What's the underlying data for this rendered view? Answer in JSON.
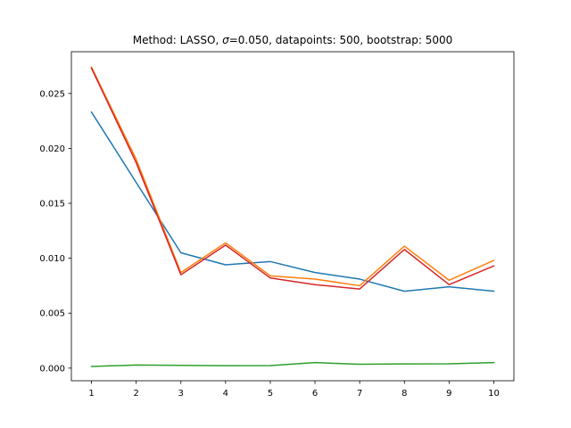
{
  "chart_data": {
    "type": "line",
    "title": "Method: LASSO, σ=0.050, datapoints: 500, bootstrap: 5000",
    "title_parts": {
      "prefix": "Method: LASSO, ",
      "sigma_symbol": "σ",
      "suffix": "=0.050, datapoints: 500, bootstrap: 5000"
    },
    "xlabel": "",
    "ylabel": "",
    "x": [
      1,
      2,
      3,
      4,
      5,
      6,
      7,
      8,
      9,
      10
    ],
    "xlim": [
      0.55,
      10.45
    ],
    "ylim": [
      -0.00115,
      0.0288
    ],
    "xticks": [
      "1",
      "2",
      "3",
      "4",
      "5",
      "6",
      "7",
      "8",
      "9",
      "10"
    ],
    "yticks": [
      {
        "value": 0.0,
        "label": "0.000"
      },
      {
        "value": 0.005,
        "label": "0.005"
      },
      {
        "value": 0.01,
        "label": "0.010"
      },
      {
        "value": 0.015,
        "label": "0.015"
      },
      {
        "value": 0.02,
        "label": "0.020"
      },
      {
        "value": 0.025,
        "label": "0.025"
      }
    ],
    "grid": false,
    "legend": false,
    "series": [
      {
        "color": "#1f77b4",
        "values": [
          0.0233,
          0.0169,
          0.0105,
          0.0094,
          0.0097,
          0.0087,
          0.0081,
          0.007,
          0.0074,
          0.007
        ]
      },
      {
        "color": "#ff7f0e",
        "values": [
          0.0274,
          0.019,
          0.0087,
          0.0114,
          0.0084,
          0.0081,
          0.0075,
          0.0111,
          0.008,
          0.0098
        ]
      },
      {
        "color": "#2ca02c",
        "values": [
          0.00015,
          0.00028,
          0.00025,
          0.00022,
          0.00023,
          0.0005,
          0.00035,
          0.00038,
          0.00039,
          0.0005
        ]
      },
      {
        "color": "#d62728",
        "values": [
          0.0273,
          0.0187,
          0.0085,
          0.0112,
          0.0082,
          0.0076,
          0.0072,
          0.0108,
          0.0076,
          0.0093
        ]
      }
    ]
  }
}
